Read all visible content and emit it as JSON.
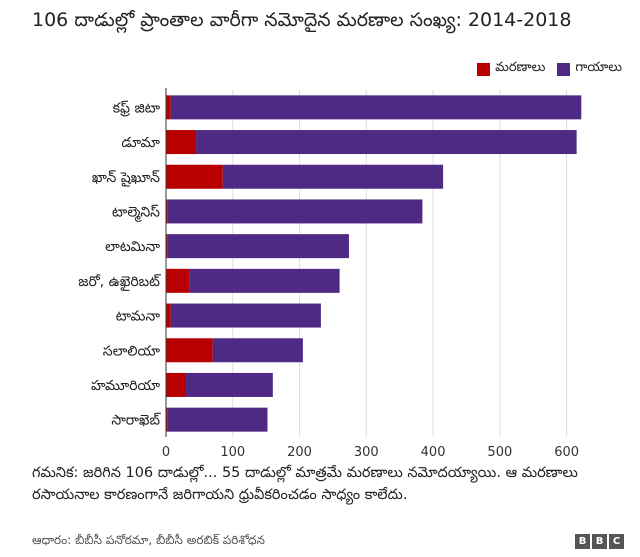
{
  "title": "106 దాడుల్లో ప్రాంతాల వారీగా నమోదైన మరణాల సంఖ్య: 2014-2018",
  "note": "గమనిక: జరిగిన 106 దాడుల్లో... 55 దాడుల్లో మాత్రమే మరణాలు నమోదయ్యాయి. ఆ మరణాలు రసాయనాల కారణంగానే జరిగాయని ధ్రువీకరించడం సాధ్యం కాలేదు.",
  "source": "ఆధారం: బీబీసీ పనోరమా, బీబీసీ అరబిక్ పరిశోధన",
  "logo": [
    "B",
    "B",
    "C"
  ],
  "colors": {
    "deaths": "#b80000",
    "injuries": "#4e2a84",
    "grid": "#dddddd",
    "axis": "#333333"
  },
  "chart_data": {
    "type": "bar",
    "orientation": "horizontal",
    "stacked": true,
    "categories": [
      "కఫ్ర్ జిటా",
      "డూమా",
      "ఖాన్ షైఖూన్",
      "టాల్మెనిస్",
      "లాటమినా",
      "జరో, ఉఖైరిబట్",
      "టామనా",
      "సలాలియా",
      "హమూరియా",
      "సారాఖెబ్"
    ],
    "series": [
      {
        "name": "మరణాలు",
        "values": [
          7,
          45,
          85,
          2,
          2,
          35,
          7,
          70,
          30,
          2
        ]
      },
      {
        "name": "గాయాలు",
        "values": [
          615,
          570,
          330,
          382,
          272,
          225,
          225,
          135,
          130,
          150
        ]
      }
    ],
    "xlim": [
      0,
      650
    ],
    "xticks": [
      0,
      100,
      200,
      300,
      400,
      500,
      600
    ],
    "legend": "top-right",
    "grid": true
  }
}
